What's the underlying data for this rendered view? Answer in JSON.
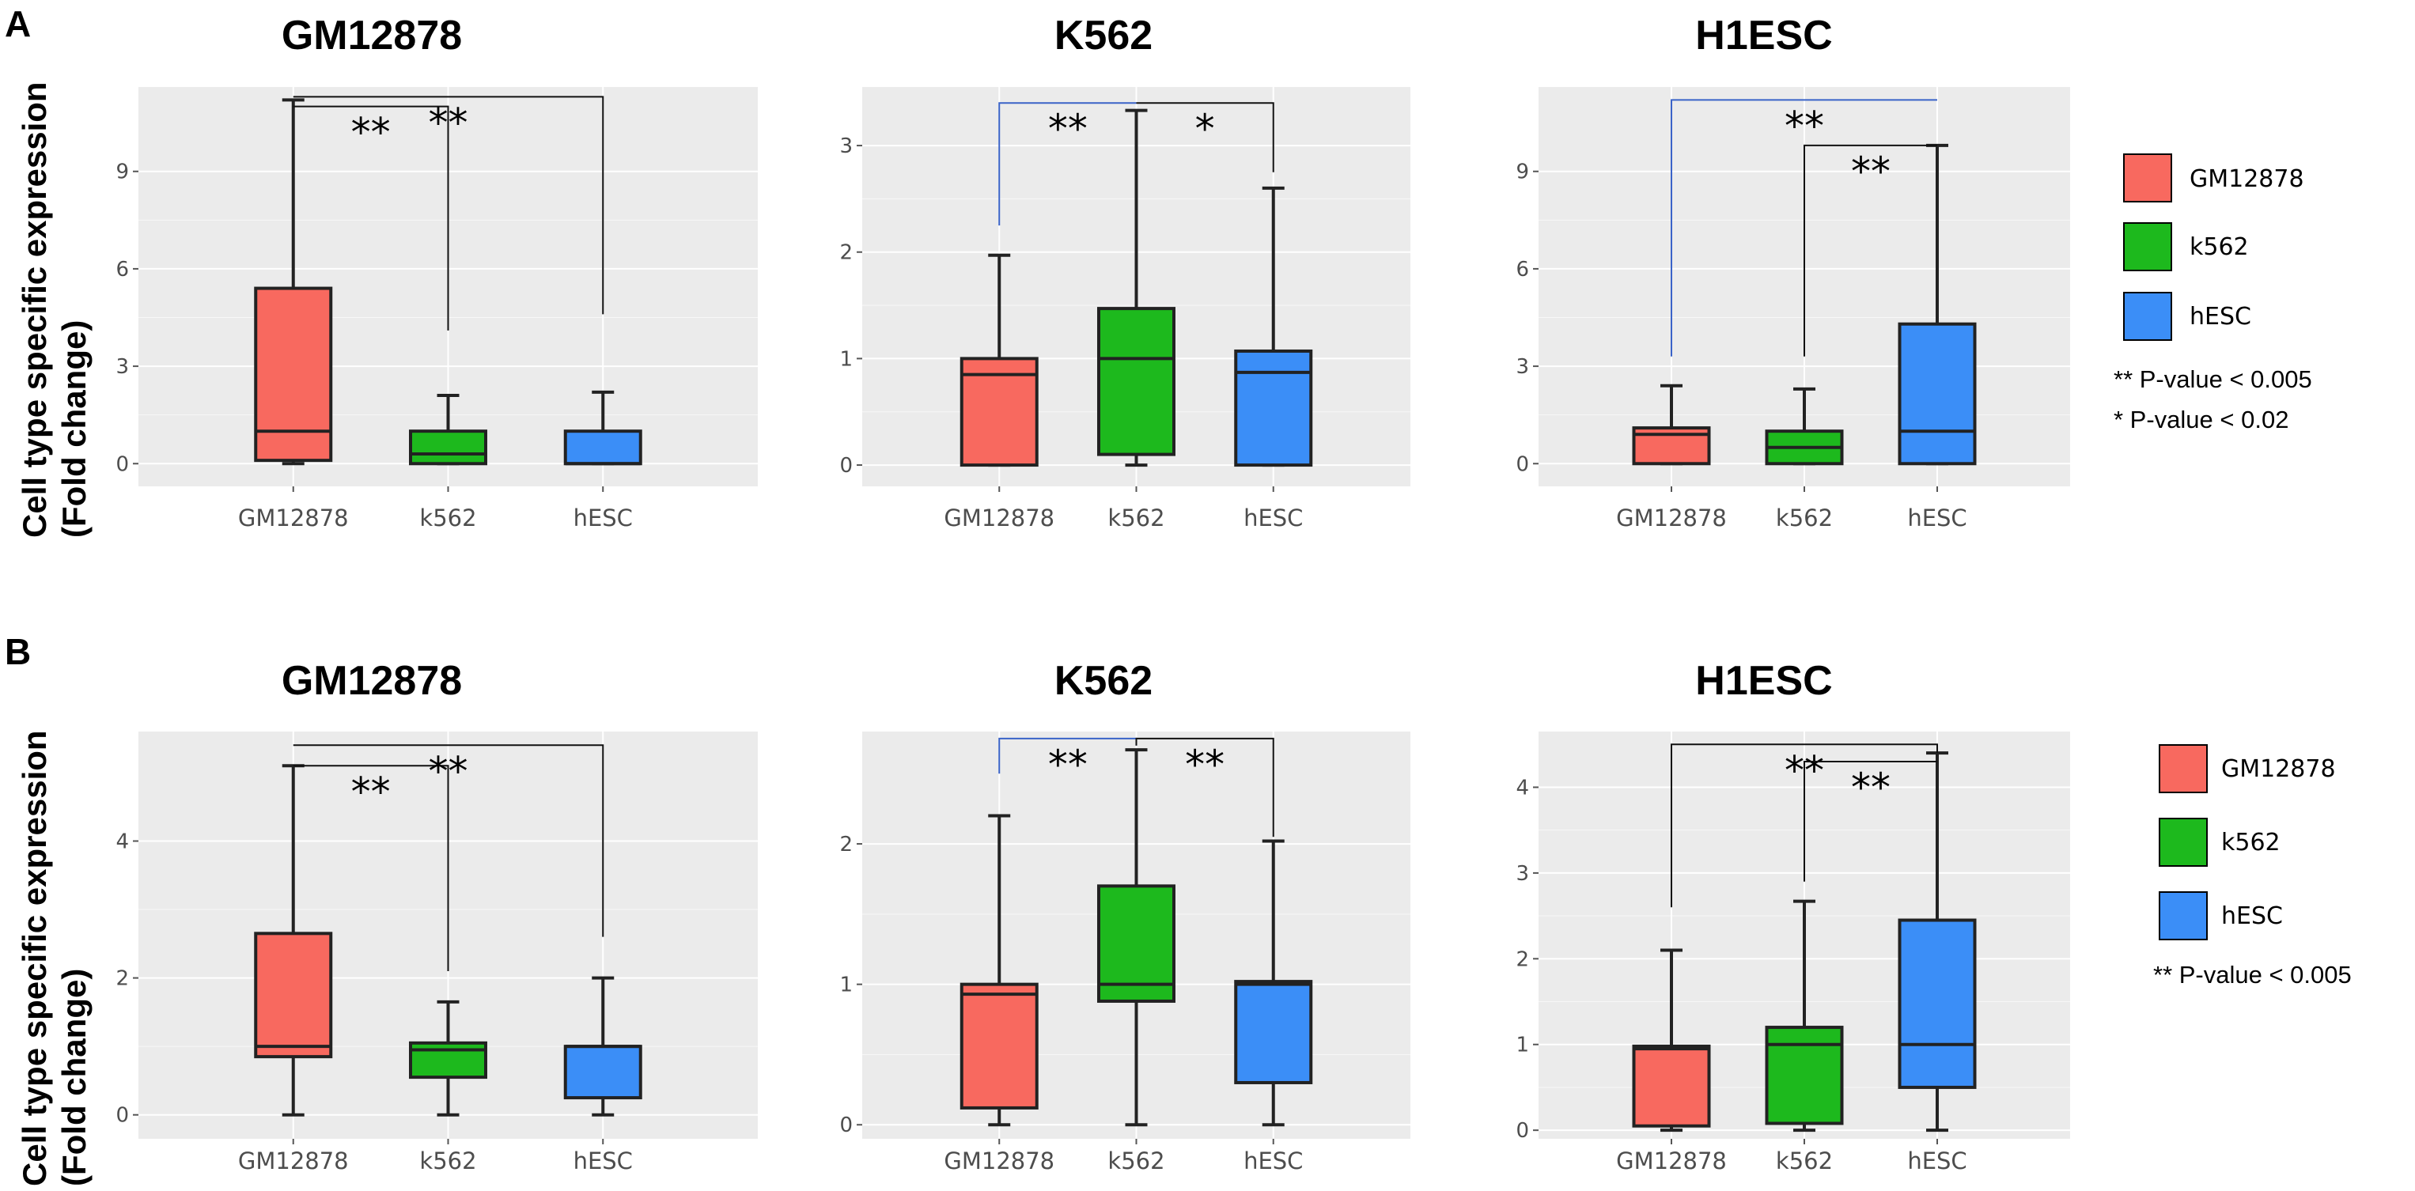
{
  "panel_labels": [
    "A",
    "B"
  ],
  "y_axis_label": [
    "Cell type specific expression",
    "(Fold change)"
  ],
  "colors": {
    "GM12878": "#f8695f",
    "k562": "#1db91d",
    "hESC": "#3b8ef7",
    "bracket_blue": "#3a63c8"
  },
  "legends": [
    {
      "entries": [
        "GM12878",
        "k562",
        "hESC"
      ],
      "notes": [
        "** P-value < 0.005",
        "* P-value < 0.02"
      ]
    },
    {
      "entries": [
        "GM12878",
        "k562",
        "hESC"
      ],
      "notes": [
        "** P-value < 0.005"
      ]
    }
  ],
  "chart_data": [
    {
      "type": "box",
      "row": 0,
      "col": 0,
      "title": "GM12878",
      "ylim": [
        -0.7,
        11.6
      ],
      "yticks": [
        0,
        3,
        6,
        9
      ],
      "categories": [
        "GM12878",
        "k562",
        "hESC"
      ],
      "boxes": [
        {
          "min": 0,
          "q1": 0.1,
          "median": 1.0,
          "q3": 5.4,
          "max": 11.2
        },
        {
          "min": 0,
          "q1": 0.0,
          "median": 0.3,
          "q3": 1.0,
          "max": 2.1
        },
        {
          "min": 0,
          "q1": 0.0,
          "median": 0.0,
          "q3": 1.0,
          "max": 2.2
        }
      ],
      "significance": [
        {
          "from": 0,
          "to": 1,
          "label": "**",
          "top": 11.0,
          "left_drop": 11.0,
          "right_drop": 4.1,
          "blue": false
        },
        {
          "from": 0,
          "to": 2,
          "label": "**",
          "top": 11.3,
          "left_drop": 11.3,
          "right_drop": 4.6,
          "blue": false
        }
      ]
    },
    {
      "type": "box",
      "row": 0,
      "col": 1,
      "title": "K562",
      "ylim": [
        -0.2,
        3.55
      ],
      "yticks": [
        0,
        1,
        2,
        3
      ],
      "categories": [
        "GM12878",
        "k562",
        "hESC"
      ],
      "boxes": [
        {
          "min": 0,
          "q1": 0.0,
          "median": 0.85,
          "q3": 1.0,
          "max": 1.97
        },
        {
          "min": 0,
          "q1": 0.1,
          "median": 1.0,
          "q3": 1.47,
          "max": 3.33
        },
        {
          "min": 0,
          "q1": 0.0,
          "median": 0.87,
          "q3": 1.07,
          "max": 2.6
        }
      ],
      "significance": [
        {
          "from": 0,
          "to": 1,
          "label": "**",
          "top": 3.4,
          "left_drop": 2.25,
          "right_drop": 3.4,
          "blue": true
        },
        {
          "from": 1,
          "to": 2,
          "label": "*",
          "top": 3.4,
          "left_drop": 3.4,
          "right_drop": 2.75,
          "blue": false
        }
      ]
    },
    {
      "type": "box",
      "row": 0,
      "col": 2,
      "title": "H1ESC",
      "ylim": [
        -0.7,
        11.6
      ],
      "yticks": [
        0,
        3,
        6,
        9
      ],
      "categories": [
        "GM12878",
        "k562",
        "hESC"
      ],
      "boxes": [
        {
          "min": 0,
          "q1": 0.0,
          "median": 0.9,
          "q3": 1.1,
          "max": 2.4
        },
        {
          "min": 0,
          "q1": 0.0,
          "median": 0.5,
          "q3": 1.0,
          "max": 2.3
        },
        {
          "min": 0,
          "q1": 0.0,
          "median": 1.0,
          "q3": 4.3,
          "max": 9.8
        }
      ],
      "significance": [
        {
          "from": 0,
          "to": 2,
          "label": "**",
          "top": 11.2,
          "left_drop": 3.3,
          "right_drop": 11.2,
          "blue": true
        },
        {
          "from": 1,
          "to": 2,
          "label": "**",
          "top": 9.8,
          "left_drop": 3.3,
          "right_drop": 9.8,
          "blue": false
        }
      ]
    },
    {
      "type": "box",
      "row": 1,
      "col": 0,
      "title": "GM12878",
      "ylim": [
        -0.35,
        5.6
      ],
      "yticks": [
        0,
        2,
        4
      ],
      "categories": [
        "GM12878",
        "k562",
        "hESC"
      ],
      "boxes": [
        {
          "min": 0,
          "q1": 0.85,
          "median": 1.0,
          "q3": 2.65,
          "max": 5.1
        },
        {
          "min": 0,
          "q1": 0.55,
          "median": 0.95,
          "q3": 1.05,
          "max": 1.65
        },
        {
          "min": 0,
          "q1": 0.25,
          "median": 1.0,
          "q3": 1.0,
          "max": 2.0
        }
      ],
      "significance": [
        {
          "from": 0,
          "to": 1,
          "label": "**",
          "top": 5.1,
          "left_drop": 5.1,
          "right_drop": 2.1,
          "blue": false
        },
        {
          "from": 0,
          "to": 2,
          "label": "**",
          "top": 5.4,
          "left_drop": 5.4,
          "right_drop": 2.6,
          "blue": false
        }
      ]
    },
    {
      "type": "box",
      "row": 1,
      "col": 1,
      "title": "K562",
      "ylim": [
        -0.1,
        2.8
      ],
      "yticks": [
        0,
        1,
        2
      ],
      "categories": [
        "GM12878",
        "k562",
        "hESC"
      ],
      "boxes": [
        {
          "min": 0,
          "q1": 0.12,
          "median": 0.93,
          "q3": 1.0,
          "max": 2.2
        },
        {
          "min": 0,
          "q1": 0.88,
          "median": 1.0,
          "q3": 1.7,
          "max": 2.67
        },
        {
          "min": 0,
          "q1": 0.3,
          "median": 1.0,
          "q3": 1.02,
          "max": 2.02
        }
      ],
      "significance": [
        {
          "from": 0,
          "to": 1,
          "label": "**",
          "top": 2.75,
          "left_drop": 2.5,
          "right_drop": 2.7,
          "blue": true
        },
        {
          "from": 1,
          "to": 2,
          "label": "**",
          "top": 2.75,
          "left_drop": 2.7,
          "right_drop": 2.05,
          "blue": false
        }
      ]
    },
    {
      "type": "box",
      "row": 1,
      "col": 2,
      "title": "H1ESC",
      "ylim": [
        -0.1,
        4.65
      ],
      "yticks": [
        0,
        1,
        2,
        3,
        4
      ],
      "categories": [
        "GM12878",
        "k562",
        "hESC"
      ],
      "boxes": [
        {
          "min": 0,
          "q1": 0.05,
          "median": 0.95,
          "q3": 0.98,
          "max": 2.1
        },
        {
          "min": 0,
          "q1": 0.08,
          "median": 1.0,
          "q3": 1.2,
          "max": 2.67
        },
        {
          "min": 0,
          "q1": 0.5,
          "median": 1.0,
          "q3": 2.45,
          "max": 4.4
        }
      ],
      "significance": [
        {
          "from": 0,
          "to": 2,
          "label": "**",
          "top": 4.5,
          "left_drop": 2.6,
          "right_drop": 4.4,
          "blue": false
        },
        {
          "from": 1,
          "to": 2,
          "label": "**",
          "top": 4.3,
          "left_drop": 2.9,
          "right_drop": 4.3,
          "blue": false
        }
      ]
    }
  ]
}
